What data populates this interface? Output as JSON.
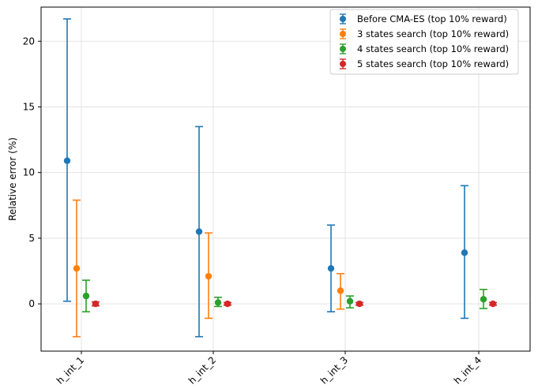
{
  "chart_data": {
    "type": "scatter",
    "subtype": "errorbar",
    "title": "",
    "xlabel": "",
    "ylabel": "Relative error (%)",
    "categories": [
      "h_int_1",
      "h_int_2",
      "h_int_3",
      "h_int_4"
    ],
    "ylim": [
      -3.6,
      22.6
    ],
    "yticks": [
      0,
      5,
      10,
      15,
      20
    ],
    "grid": true,
    "legend_position": "top-right",
    "series": [
      {
        "name": "Before CMA-ES (top 10% reward)",
        "color": "#1f77b4",
        "points": [
          {
            "category": "h_int_1",
            "y": 10.9,
            "lower": 0.2,
            "upper": 21.7
          },
          {
            "category": "h_int_2",
            "y": 5.5,
            "lower": -2.5,
            "upper": 13.5
          },
          {
            "category": "h_int_3",
            "y": 2.7,
            "lower": -0.6,
            "upper": 6.0
          },
          {
            "category": "h_int_4",
            "y": 3.9,
            "lower": -1.1,
            "upper": 9.0
          }
        ]
      },
      {
        "name": "3 states search (top 10% reward)",
        "color": "#ff7f0e",
        "points": [
          {
            "category": "h_int_1",
            "y": 2.7,
            "lower": -2.5,
            "upper": 7.9
          },
          {
            "category": "h_int_2",
            "y": 2.1,
            "lower": -1.1,
            "upper": 5.4
          },
          {
            "category": "h_int_3",
            "y": 1.0,
            "lower": -0.4,
            "upper": 2.3
          }
        ]
      },
      {
        "name": "4 states search (top 10% reward)",
        "color": "#2ca02c",
        "points": [
          {
            "category": "h_int_1",
            "y": 0.6,
            "lower": -0.6,
            "upper": 1.8
          },
          {
            "category": "h_int_2",
            "y": 0.1,
            "lower": -0.2,
            "upper": 0.5
          },
          {
            "category": "h_int_3",
            "y": 0.2,
            "lower": -0.3,
            "upper": 0.6
          },
          {
            "category": "h_int_4",
            "y": 0.35,
            "lower": -0.35,
            "upper": 1.1
          }
        ]
      },
      {
        "name": "5 states search (top 10% reward)",
        "color": "#d62728",
        "points": [
          {
            "category": "h_int_1",
            "y": 0.0,
            "lower": -0.15,
            "upper": 0.15
          },
          {
            "category": "h_int_2",
            "y": 0.0,
            "lower": -0.1,
            "upper": 0.1
          },
          {
            "category": "h_int_3",
            "y": 0.0,
            "lower": -0.1,
            "upper": 0.1
          },
          {
            "category": "h_int_4",
            "y": 0.0,
            "lower": -0.1,
            "upper": 0.1
          }
        ]
      }
    ]
  }
}
